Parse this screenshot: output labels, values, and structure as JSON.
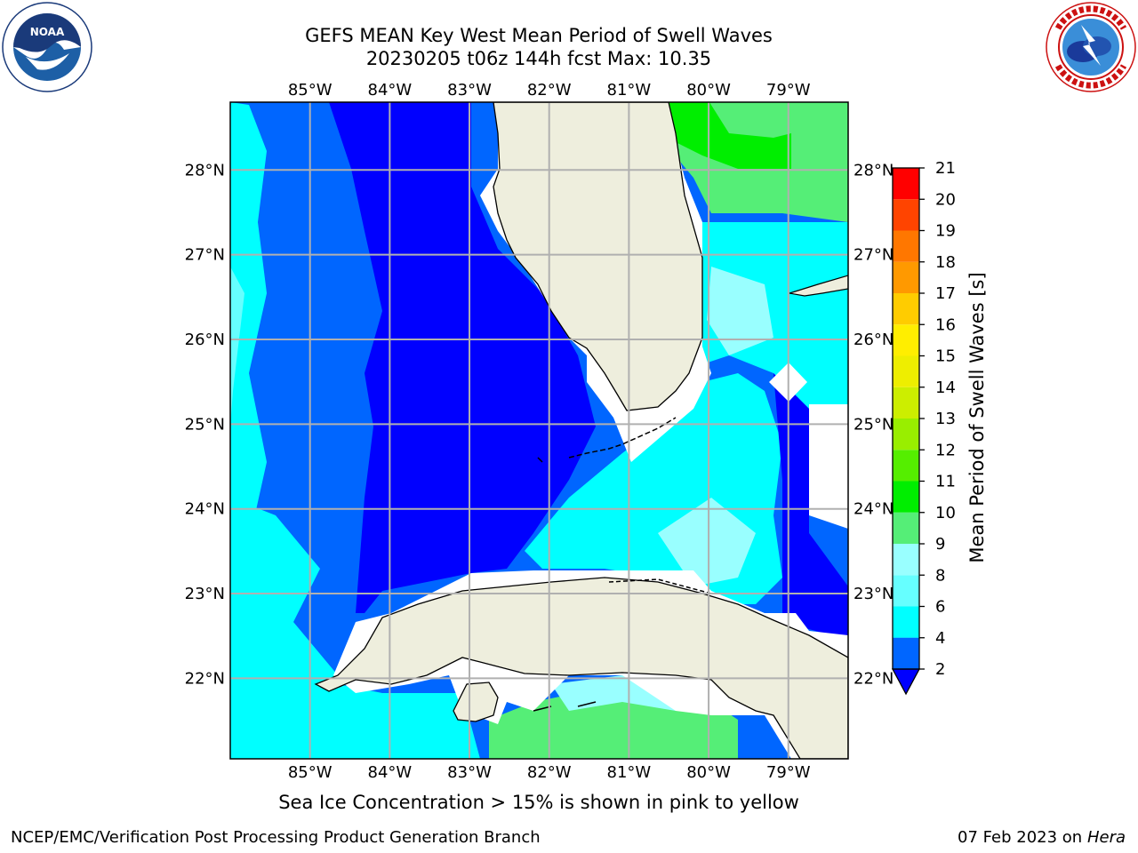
{
  "title_line1": "GEFS MEAN Key West Mean Period of Swell Waves",
  "title_line2": "20230205 t06z 144h fcst   Max: 10.35",
  "footer_note": "Sea Ice Concentration > 15% is shown in pink to yellow",
  "footer_credit": "NCEP/EMC/Verification Post Processing Product Generation Branch",
  "footer_date": "07 Feb 2023 on",
  "footer_machine": "Hera",
  "map": {
    "lon_range": [
      -86.0,
      -78.25
    ],
    "lat_range": [
      21.05,
      28.8
    ],
    "lon_ticks": [
      -85,
      -84,
      -83,
      -82,
      -81,
      -80,
      -79
    ],
    "lat_ticks": [
      22,
      23,
      24,
      25,
      26,
      27,
      28
    ],
    "lon_labels": [
      "85°W",
      "84°W",
      "83°W",
      "82°W",
      "81°W",
      "80°W",
      "79°W"
    ],
    "lat_labels": [
      "22°N",
      "23°N",
      "24°N",
      "25°N",
      "26°N",
      "27°N",
      "28°N"
    ],
    "gridlines": true
  },
  "colorbar": {
    "label": "Mean Period of Swell Waves [s]",
    "ticks": [
      "2",
      "4",
      "6",
      "8",
      "9",
      "10",
      "11",
      "12",
      "13",
      "14",
      "15",
      "16",
      "17",
      "18",
      "19",
      "20",
      "21"
    ],
    "colors": [
      "#0066ff",
      "#00ccff",
      "#00ffff",
      "#66ffff",
      "#99ffff",
      "#55ee77",
      "#00ee00",
      "#55ee00",
      "#99ee00",
      "#ccee00",
      "#eeee00",
      "#ffee00",
      "#ffcc00",
      "#ff9900",
      "#ff7700",
      "#ff4400",
      "#ff0000"
    ],
    "under_color": "#0000ff",
    "extend": "min"
  },
  "colors": {
    "land": "#eeeedd",
    "deep_blue": "#0000ff",
    "blue": "#0066ff",
    "aqua": "#00ffff",
    "light_aqua": "#99ffff",
    "light_green": "#55ee77",
    "green": "#00ee00"
  },
  "logos": {
    "left": "noaa-logo",
    "right": "nws-logo"
  }
}
